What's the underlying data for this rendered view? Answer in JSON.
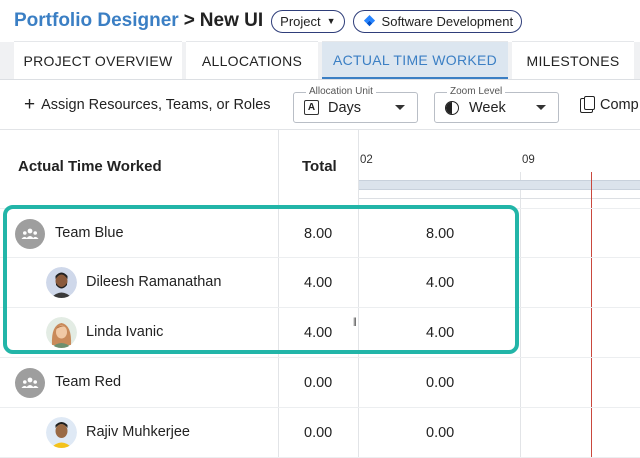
{
  "header": {
    "breadcrumb_root": "Portfolio Designer",
    "separator": ">",
    "current": "New UI",
    "type_pill": "Project",
    "category_pill": "Software Development"
  },
  "tabs": [
    {
      "label": "PROJECT OVERVIEW",
      "active": false
    },
    {
      "label": "ALLOCATIONS",
      "active": false
    },
    {
      "label": "ACTUAL TIME WORKED",
      "active": true
    },
    {
      "label": "MILESTONES",
      "active": false
    }
  ],
  "toolbar": {
    "assign_label": "Assign Resources, Teams, or Roles",
    "allocation_unit": {
      "legend": "Allocation Unit",
      "icon_letter": "A",
      "value": "Days"
    },
    "zoom_level": {
      "legend": "Zoom Level",
      "value": "Week"
    },
    "compare_label": "Comp"
  },
  "grid": {
    "name_header": "Actual Time Worked",
    "total_header": "Total",
    "timeline": [
      "02",
      "09"
    ],
    "rows": [
      {
        "type": "team",
        "name": "Team Blue",
        "total": "8.00",
        "week": "8.00",
        "highlighted": true
      },
      {
        "type": "person",
        "name": "Dileesh Ramanathan",
        "total": "4.00",
        "week": "4.00",
        "highlighted": true,
        "avatar": "man-beard"
      },
      {
        "type": "person",
        "name": "Linda Ivanic",
        "total": "4.00",
        "week": "4.00",
        "highlighted": true,
        "avatar": "woman-redhair"
      },
      {
        "type": "team",
        "name": "Team Red",
        "total": "0.00",
        "week": "0.00",
        "highlighted": false
      },
      {
        "type": "person",
        "name": "Rajiv Muhkerjee",
        "total": "0.00",
        "week": "0.00",
        "highlighted": false,
        "avatar": "man-yellow"
      }
    ]
  },
  "colors": {
    "accent": "#3b7fc4",
    "highlight": "#22b5a8",
    "today_line": "#c9483d"
  }
}
